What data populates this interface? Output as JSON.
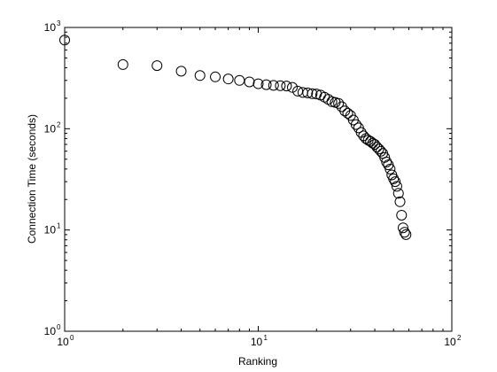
{
  "chart_data": {
    "type": "scatter",
    "title": "",
    "xlabel": "Ranking",
    "ylabel": "Connection Time (seconds)",
    "xscale": "log",
    "yscale": "log",
    "xlim": [
      1,
      100
    ],
    "ylim": [
      1,
      1000
    ],
    "grid": false,
    "legend": "none",
    "marker": "open-circle",
    "marker_color": "#000000",
    "x_ticks": [
      {
        "base": "10",
        "exp": "0"
      },
      {
        "base": "10",
        "exp": "1"
      },
      {
        "base": "10",
        "exp": "2"
      }
    ],
    "y_ticks": [
      {
        "base": "10",
        "exp": "0"
      },
      {
        "base": "10",
        "exp": "1"
      },
      {
        "base": "10",
        "exp": "2"
      },
      {
        "base": "10",
        "exp": "3"
      }
    ],
    "series": [
      {
        "points": [
          [
            1,
            750
          ],
          [
            2,
            430
          ],
          [
            3,
            420
          ],
          [
            4,
            370
          ],
          [
            5,
            335
          ],
          [
            6,
            325
          ],
          [
            7,
            310
          ],
          [
            8,
            300
          ],
          [
            9,
            290
          ],
          [
            10,
            278
          ],
          [
            11,
            272
          ],
          [
            12,
            268
          ],
          [
            13,
            266
          ],
          [
            14,
            264
          ],
          [
            15,
            256
          ],
          [
            16,
            235
          ],
          [
            17,
            228
          ],
          [
            18,
            226
          ],
          [
            19,
            222
          ],
          [
            20,
            220
          ],
          [
            21,
            215
          ],
          [
            22,
            205
          ],
          [
            23,
            195
          ],
          [
            24,
            185
          ],
          [
            25,
            182
          ],
          [
            26,
            178
          ],
          [
            27,
            165
          ],
          [
            28,
            150
          ],
          [
            29,
            142
          ],
          [
            30,
            135
          ],
          [
            31,
            122
          ],
          [
            32,
            110
          ],
          [
            33,
            102
          ],
          [
            34,
            92
          ],
          [
            35,
            85
          ],
          [
            36,
            80
          ],
          [
            37,
            77
          ],
          [
            38,
            75
          ],
          [
            39,
            72
          ],
          [
            40,
            70
          ],
          [
            41,
            66
          ],
          [
            42,
            63
          ],
          [
            43,
            60
          ],
          [
            44,
            57
          ],
          [
            45,
            52
          ],
          [
            46,
            47
          ],
          [
            47,
            44
          ],
          [
            48,
            40
          ],
          [
            49,
            35
          ],
          [
            50,
            32
          ],
          [
            51,
            30
          ],
          [
            52,
            27
          ],
          [
            53,
            23
          ],
          [
            54,
            19
          ],
          [
            55,
            14
          ],
          [
            56,
            10.5
          ],
          [
            57,
            9.5
          ],
          [
            58,
            9
          ]
        ]
      }
    ]
  }
}
